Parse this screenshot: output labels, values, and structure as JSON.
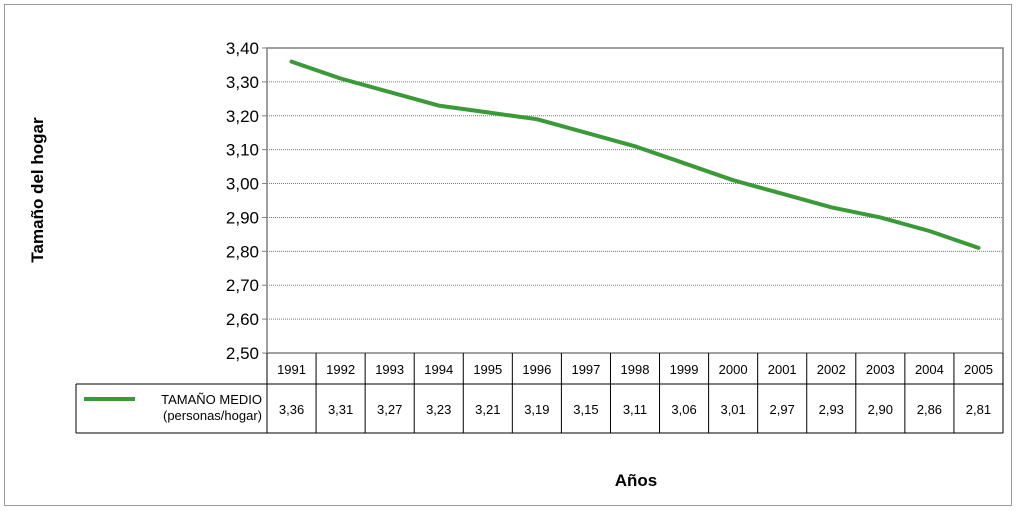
{
  "chart_data": {
    "type": "line",
    "categories": [
      "1991",
      "1992",
      "1993",
      "1994",
      "1995",
      "1996",
      "1997",
      "1998",
      "1999",
      "2000",
      "2001",
      "2002",
      "2003",
      "2004",
      "2005"
    ],
    "series": [
      {
        "name": "TAMAÑO MEDIO (personas/hogar)",
        "name_lines": [
          "TAMAÑO MEDIO",
          "(personas/hogar)"
        ],
        "values": [
          3.36,
          3.31,
          3.27,
          3.23,
          3.21,
          3.19,
          3.15,
          3.11,
          3.06,
          3.01,
          2.97,
          2.93,
          2.9,
          2.86,
          2.81
        ],
        "value_labels": [
          "3,36",
          "3,31",
          "3,27",
          "3,23",
          "3,21",
          "3,19",
          "3,15",
          "3,11",
          "3,06",
          "3,01",
          "2,97",
          "2,93",
          "2,90",
          "2,86",
          "2,81"
        ]
      }
    ],
    "ylim": [
      2.5,
      3.4
    ],
    "yticks": [
      "2,50",
      "2,60",
      "2,70",
      "2,80",
      "2,90",
      "3,00",
      "3,10",
      "3,20",
      "3,30",
      "3,40"
    ],
    "ylabel": "Tamaño del hogar",
    "xlabel": "Años",
    "grid": true,
    "legend": "data-table-below",
    "colors": {
      "series": "#3a9a37",
      "grid": "#7a7a7a",
      "axis": "#808080"
    }
  }
}
